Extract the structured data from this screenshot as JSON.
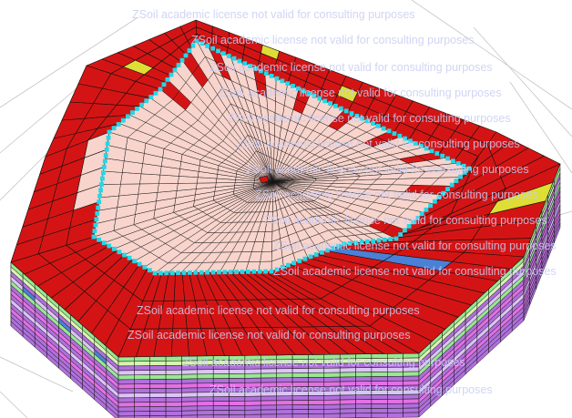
{
  "viewport": {
    "label": "3D finite element mesh view"
  },
  "watermark": {
    "text": "ZSoil academic license not valid for consulting purposes"
  },
  "colors": {
    "background": "#ffffff",
    "mesh_line": "#111111",
    "red_zone": "#d41414",
    "excavation_surface": "#f8d4cc",
    "boundary_nodes": "#22d8e8",
    "highlight_yellow": "#dede34",
    "blue_zone": "#4a80d6",
    "layer_green": "#98e890",
    "layer_violet": "#b070dc",
    "layer_lilac": "#dcc4f4",
    "layer_magenta": "#e470e4",
    "layer_lightgreen": "#d8f4b0",
    "grid_line": "#c4c4c4"
  }
}
